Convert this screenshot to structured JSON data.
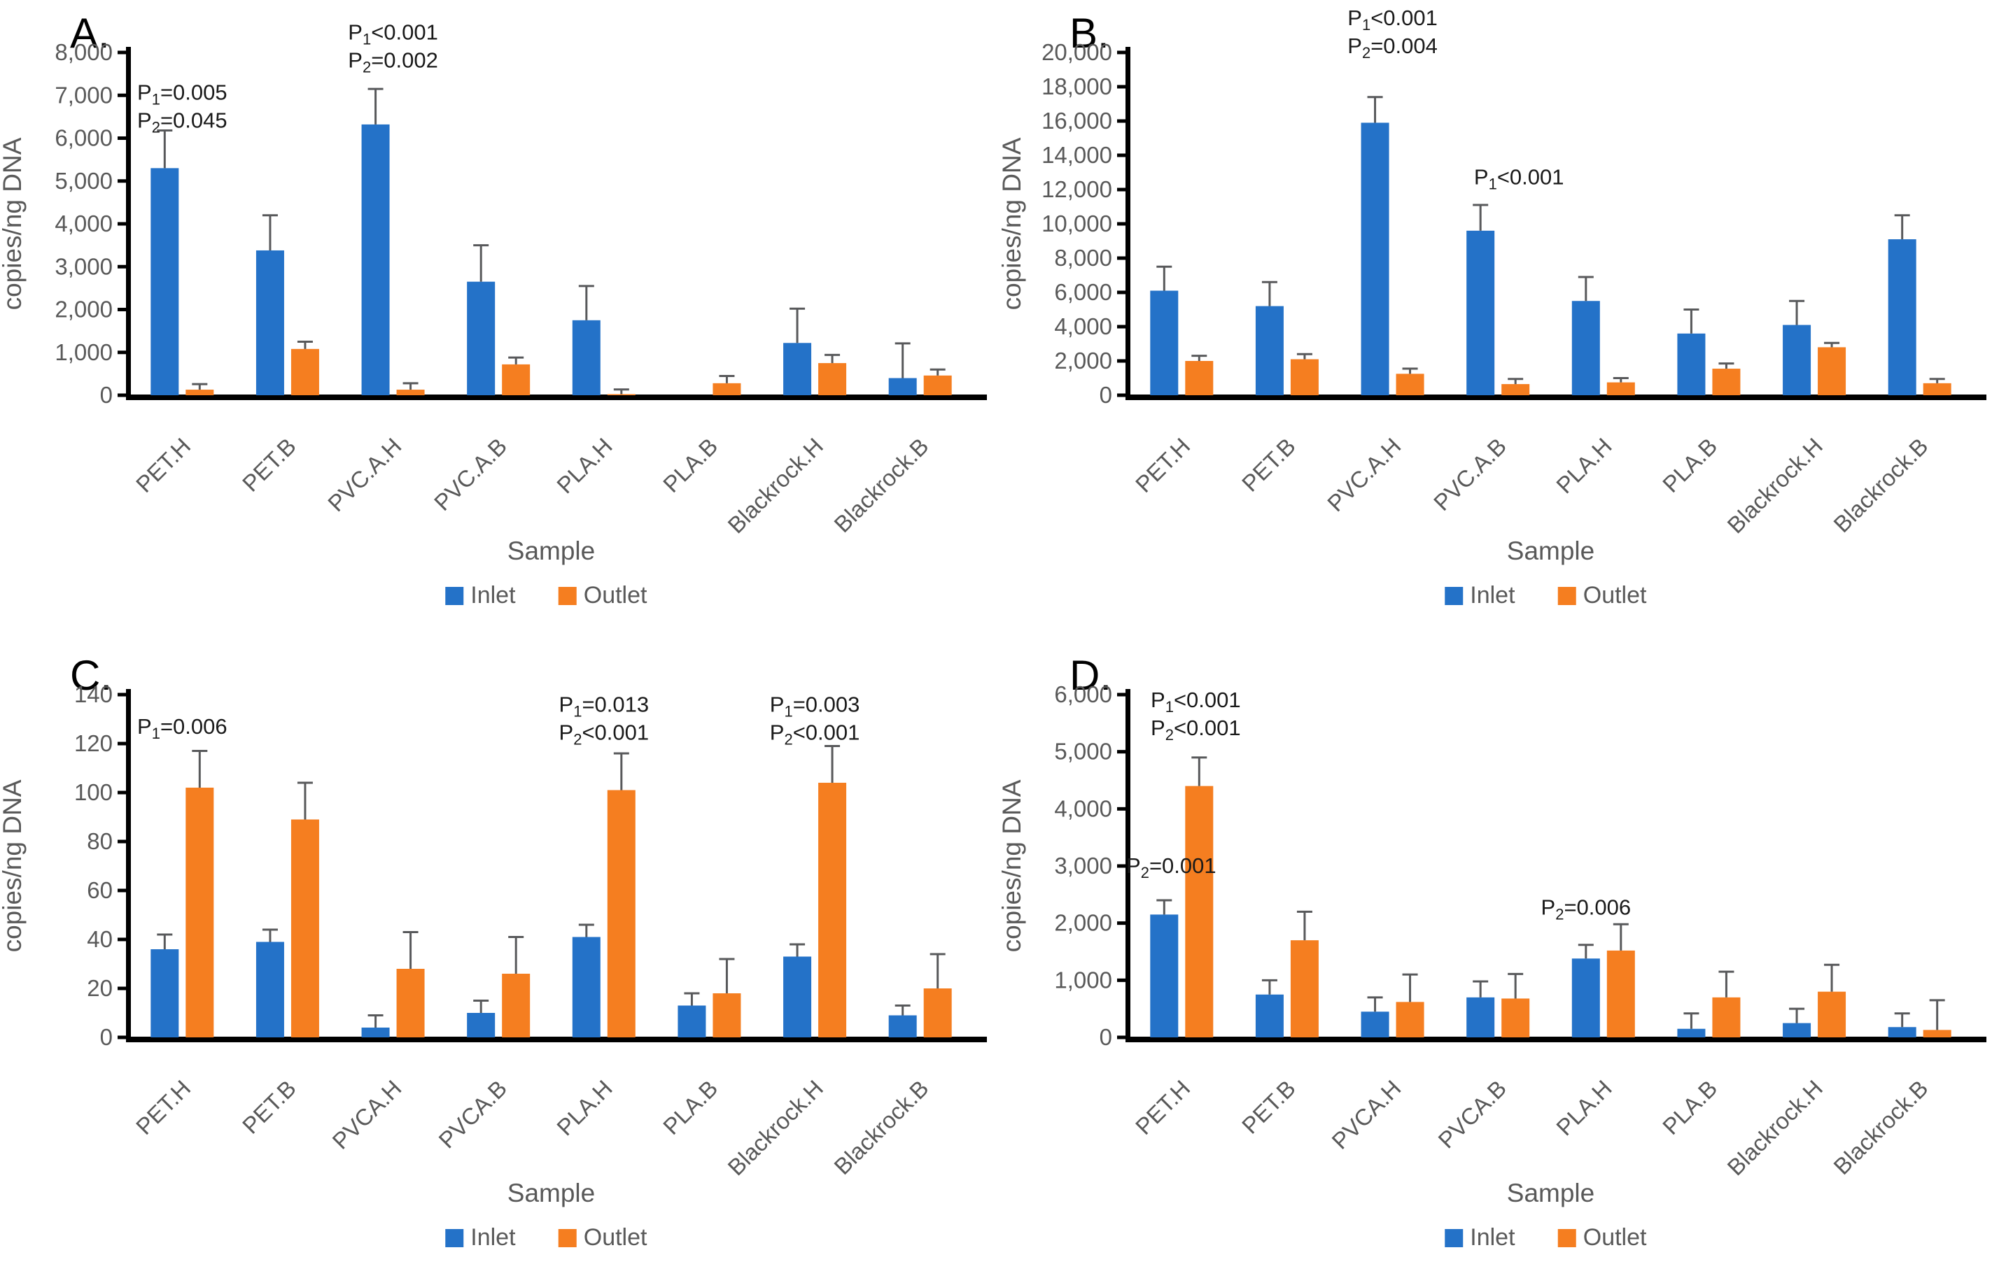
{
  "figure_title": "qPCR abundance panels",
  "colors": {
    "inlet": "#2472C8",
    "outlet": "#F57E20",
    "error_bar": "#58595B",
    "axis": "#000000",
    "label_text": "#595959",
    "annotation_text": "#1a1a1a"
  },
  "legend": {
    "inlet_label": "Inlet",
    "outlet_label": "Outlet"
  },
  "chart_data": [
    {
      "type": "bar",
      "panel_label": "A.",
      "ylabel": "copies/ng DNA",
      "xlabel": "Sample",
      "ylim": [
        0,
        8000
      ],
      "ytick_step": 1000,
      "grid": false,
      "legend_position": "bottom",
      "categories": [
        "PET.H",
        "PET.B",
        "PVC.A.H",
        "PVC.A.B",
        "PLA.H",
        "PLA.B",
        "Blackrock.H",
        "Blackrock.B"
      ],
      "series": [
        {
          "name": "Inlet",
          "color_key": "inlet",
          "values": [
            5300,
            3380,
            6320,
            2650,
            1750,
            0,
            1220,
            400
          ],
          "errors": [
            880,
            820,
            830,
            850,
            800,
            0,
            800,
            810
          ]
        },
        {
          "name": "Outlet",
          "color_key": "outlet",
          "values": [
            130,
            1080,
            130,
            720,
            25,
            280,
            750,
            460
          ],
          "errors": [
            130,
            170,
            150,
            160,
            110,
            170,
            190,
            140
          ]
        }
      ],
      "annotations": [
        {
          "category_index": 0,
          "y": 6900,
          "dx": 0,
          "lines": [
            "P_1=0.005",
            "P_2=0.045"
          ]
        },
        {
          "category_index": 2,
          "y": 8300,
          "dx": 0,
          "lines": [
            "P_1<0.001",
            "P_2=0.002"
          ]
        }
      ]
    },
    {
      "type": "bar",
      "panel_label": "B.",
      "ylabel": "copies/ng DNA",
      "xlabel": "Sample",
      "ylim": [
        0,
        20000
      ],
      "ytick_step": 2000,
      "grid": false,
      "legend_position": "bottom",
      "categories": [
        "PET.H",
        "PET.B",
        "PVC.A.H",
        "PVC.A.B",
        "PLA.H",
        "PLA.B",
        "Blackrock.H",
        "Blackrock.B"
      ],
      "series": [
        {
          "name": "Inlet",
          "color_key": "inlet",
          "values": [
            6100,
            5200,
            15900,
            9600,
            5500,
            3600,
            4100,
            9100
          ],
          "errors": [
            1400,
            1400,
            1500,
            1500,
            1400,
            1400,
            1400,
            1400
          ]
        },
        {
          "name": "Outlet",
          "color_key": "outlet",
          "values": [
            2000,
            2100,
            1250,
            650,
            750,
            1550,
            2800,
            700
          ],
          "errors": [
            300,
            300,
            300,
            300,
            250,
            300,
            250,
            250
          ]
        }
      ],
      "annotations": [
        {
          "category_index": 2,
          "y": 21600,
          "dx": 0,
          "lines": [
            "P_1<0.001",
            "P_2=0.004"
          ]
        },
        {
          "category_index": 3,
          "y": 12300,
          "dx": 30,
          "lines": [
            "P_1<0.001"
          ]
        }
      ]
    },
    {
      "type": "bar",
      "panel_label": "C.",
      "ylabel": "copies/ng DNA",
      "xlabel": "Sample",
      "ylim": [
        0,
        140
      ],
      "ytick_step": 20,
      "grid": false,
      "legend_position": "bottom",
      "categories": [
        "PET.H",
        "PET.B",
        "PVCA.H",
        "PVCA.B",
        "PLA.H",
        "PLA.B",
        "Blackrock.H",
        "Blackrock.B"
      ],
      "series": [
        {
          "name": "Inlet",
          "color_key": "inlet",
          "values": [
            36,
            39,
            4,
            10,
            41,
            13,
            33,
            9
          ],
          "errors": [
            6,
            5,
            5,
            5,
            5,
            5,
            5,
            4
          ]
        },
        {
          "name": "Outlet",
          "color_key": "outlet",
          "values": [
            102,
            89,
            28,
            26,
            101,
            18,
            104,
            20
          ],
          "errors": [
            15,
            15,
            15,
            15,
            15,
            14,
            15,
            14
          ]
        }
      ],
      "annotations": [
        {
          "category_index": 0,
          "y": 124,
          "dx": 0,
          "lines": [
            "P_1=0.006"
          ]
        },
        {
          "category_index": 4,
          "y": 133,
          "dx": 0,
          "lines": [
            "P_1=0.013",
            "P_2<0.001"
          ]
        },
        {
          "category_index": 6,
          "y": 133,
          "dx": 0,
          "lines": [
            "P_1=0.003",
            "P_2<0.001"
          ]
        }
      ]
    },
    {
      "type": "bar",
      "panel_label": "D.",
      "ylabel": "copies/ng DNA",
      "xlabel": "Sample",
      "ylim": [
        0,
        6000
      ],
      "ytick_step": 1000,
      "grid": false,
      "legend_position": "bottom",
      "categories": [
        "PET.H",
        "PET.B",
        "PVCA.H",
        "PVCA.B",
        "PLA.H",
        "PLA.B",
        "Blackrock.H",
        "Blackrock.B"
      ],
      "series": [
        {
          "name": "Inlet",
          "color_key": "inlet",
          "values": [
            2150,
            750,
            450,
            700,
            1380,
            150,
            250,
            180
          ],
          "errors": [
            250,
            250,
            250,
            280,
            240,
            270,
            250,
            240
          ]
        },
        {
          "name": "Outlet",
          "color_key": "outlet",
          "values": [
            4400,
            1700,
            620,
            680,
            1520,
            700,
            800,
            130
          ],
          "errors": [
            500,
            500,
            480,
            430,
            460,
            450,
            470,
            520
          ]
        }
      ],
      "annotations": [
        {
          "category_index": 0,
          "y": 5780,
          "dx": 20,
          "lines": [
            "P_1<0.001",
            "P_2<0.001"
          ]
        },
        {
          "category_index": 0,
          "y": 2880,
          "dx": -15,
          "lines": [
            "P_2=0.001"
          ]
        },
        {
          "category_index": 4,
          "y": 2150,
          "dx": -25,
          "lines": [
            "P_2=0.006"
          ]
        }
      ]
    }
  ]
}
